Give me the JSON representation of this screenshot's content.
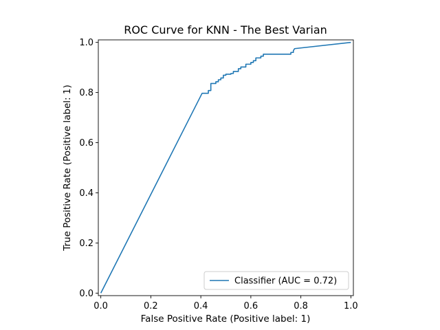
{
  "chart_data": {
    "type": "line",
    "title": "ROC Curve for KNN - The Best Varian",
    "xlabel": "False Positive Rate (Positive label: 1)",
    "ylabel": "True Positive Rate (Positive label: 1)",
    "xlim": [
      -0.01,
      1.01
    ],
    "ylim": [
      -0.01,
      1.01
    ],
    "xticks": [
      0.0,
      0.2,
      0.4,
      0.6,
      0.8,
      1.0
    ],
    "yticks": [
      0.0,
      0.2,
      0.4,
      0.6,
      0.8,
      1.0
    ],
    "xtick_labels": [
      "0.0",
      "0.2",
      "0.4",
      "0.6",
      "0.8",
      "1.0"
    ],
    "ytick_labels": [
      "0.0",
      "0.2",
      "0.4",
      "0.6",
      "0.8",
      "1.0"
    ],
    "grid": false,
    "legend_position": "lower-right",
    "series": [
      {
        "name": "Classifier (AUC = 0.72)",
        "color": "#1f77b4",
        "points": [
          [
            0.0,
            0.0
          ],
          [
            0.405,
            0.797
          ],
          [
            0.43,
            0.797
          ],
          [
            0.43,
            0.808
          ],
          [
            0.44,
            0.808
          ],
          [
            0.44,
            0.836
          ],
          [
            0.46,
            0.836
          ],
          [
            0.46,
            0.843
          ],
          [
            0.47,
            0.843
          ],
          [
            0.47,
            0.851
          ],
          [
            0.48,
            0.851
          ],
          [
            0.48,
            0.858
          ],
          [
            0.49,
            0.858
          ],
          [
            0.49,
            0.869
          ],
          [
            0.5,
            0.869
          ],
          [
            0.5,
            0.873
          ],
          [
            0.52,
            0.873
          ],
          [
            0.52,
            0.876
          ],
          [
            0.53,
            0.876
          ],
          [
            0.53,
            0.884
          ],
          [
            0.55,
            0.884
          ],
          [
            0.55,
            0.895
          ],
          [
            0.56,
            0.895
          ],
          [
            0.56,
            0.902
          ],
          [
            0.58,
            0.902
          ],
          [
            0.58,
            0.913
          ],
          [
            0.6,
            0.913
          ],
          [
            0.6,
            0.92
          ],
          [
            0.61,
            0.92
          ],
          [
            0.61,
            0.927
          ],
          [
            0.62,
            0.927
          ],
          [
            0.62,
            0.938
          ],
          [
            0.64,
            0.938
          ],
          [
            0.64,
            0.945
          ],
          [
            0.65,
            0.945
          ],
          [
            0.65,
            0.953
          ],
          [
            0.76,
            0.953
          ],
          [
            0.76,
            0.96
          ],
          [
            0.77,
            0.96
          ],
          [
            0.77,
            0.967
          ],
          [
            0.775,
            0.975
          ],
          [
            1.0,
            1.0
          ]
        ]
      }
    ]
  }
}
